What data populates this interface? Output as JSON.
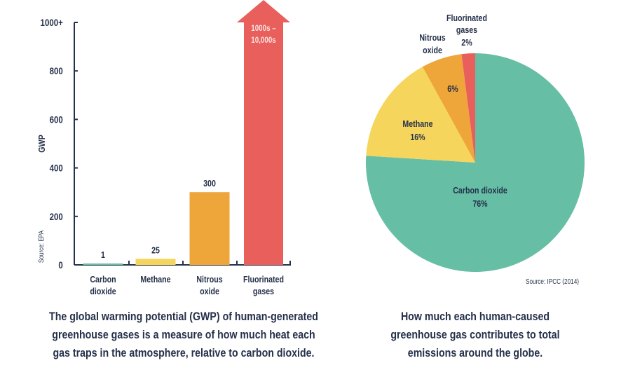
{
  "chart_data": [
    {
      "type": "bar",
      "ylabel": "GWP",
      "source": "Source: EPA",
      "ylim": [
        0,
        1000
      ],
      "yticks": [
        "0",
        "200",
        "400",
        "600",
        "800",
        "1000+"
      ],
      "ytick_values": [
        0,
        200,
        400,
        600,
        800,
        1000
      ],
      "categories": [
        [
          "Carbon",
          "dioxide"
        ],
        [
          "Methane"
        ],
        [
          "Nitrous",
          "oxide"
        ],
        [
          "Fluorinated",
          "gases"
        ]
      ],
      "values": [
        1,
        25,
        300,
        1000
      ],
      "data_labels": [
        [
          "1"
        ],
        [
          "25"
        ],
        [
          "300"
        ],
        [
          "1000s –",
          "10,000s"
        ]
      ],
      "colors": [
        "#66bfa5",
        "#f6d55c",
        "#eea53a",
        "#e85f5c"
      ],
      "caption": [
        "The global warming potential (GWP) of human-generated",
        "greenhouse gases is a measure of how much heat each",
        "gas traps in the atmosphere, relative to carbon dioxide."
      ]
    },
    {
      "type": "pie",
      "source": "Source: IPCC (2014)",
      "slices": [
        {
          "label": [
            "Carbon dioxide"
          ],
          "value": 76,
          "text": "76%",
          "color": "#66bfa5"
        },
        {
          "label": [
            "Methane"
          ],
          "value": 16,
          "text": "16%",
          "color": "#f6d55c"
        },
        {
          "label": [
            "Nitrous",
            "oxide"
          ],
          "value": 6,
          "text": "6%",
          "color": "#eea53a"
        },
        {
          "label": [
            "Fluorinated",
            "gases"
          ],
          "value": 2,
          "text": "2%",
          "color": "#e85f5c"
        }
      ],
      "caption": [
        "How much each human-caused",
        "greenhouse gas contributes to total",
        "emissions around the globe."
      ]
    }
  ]
}
